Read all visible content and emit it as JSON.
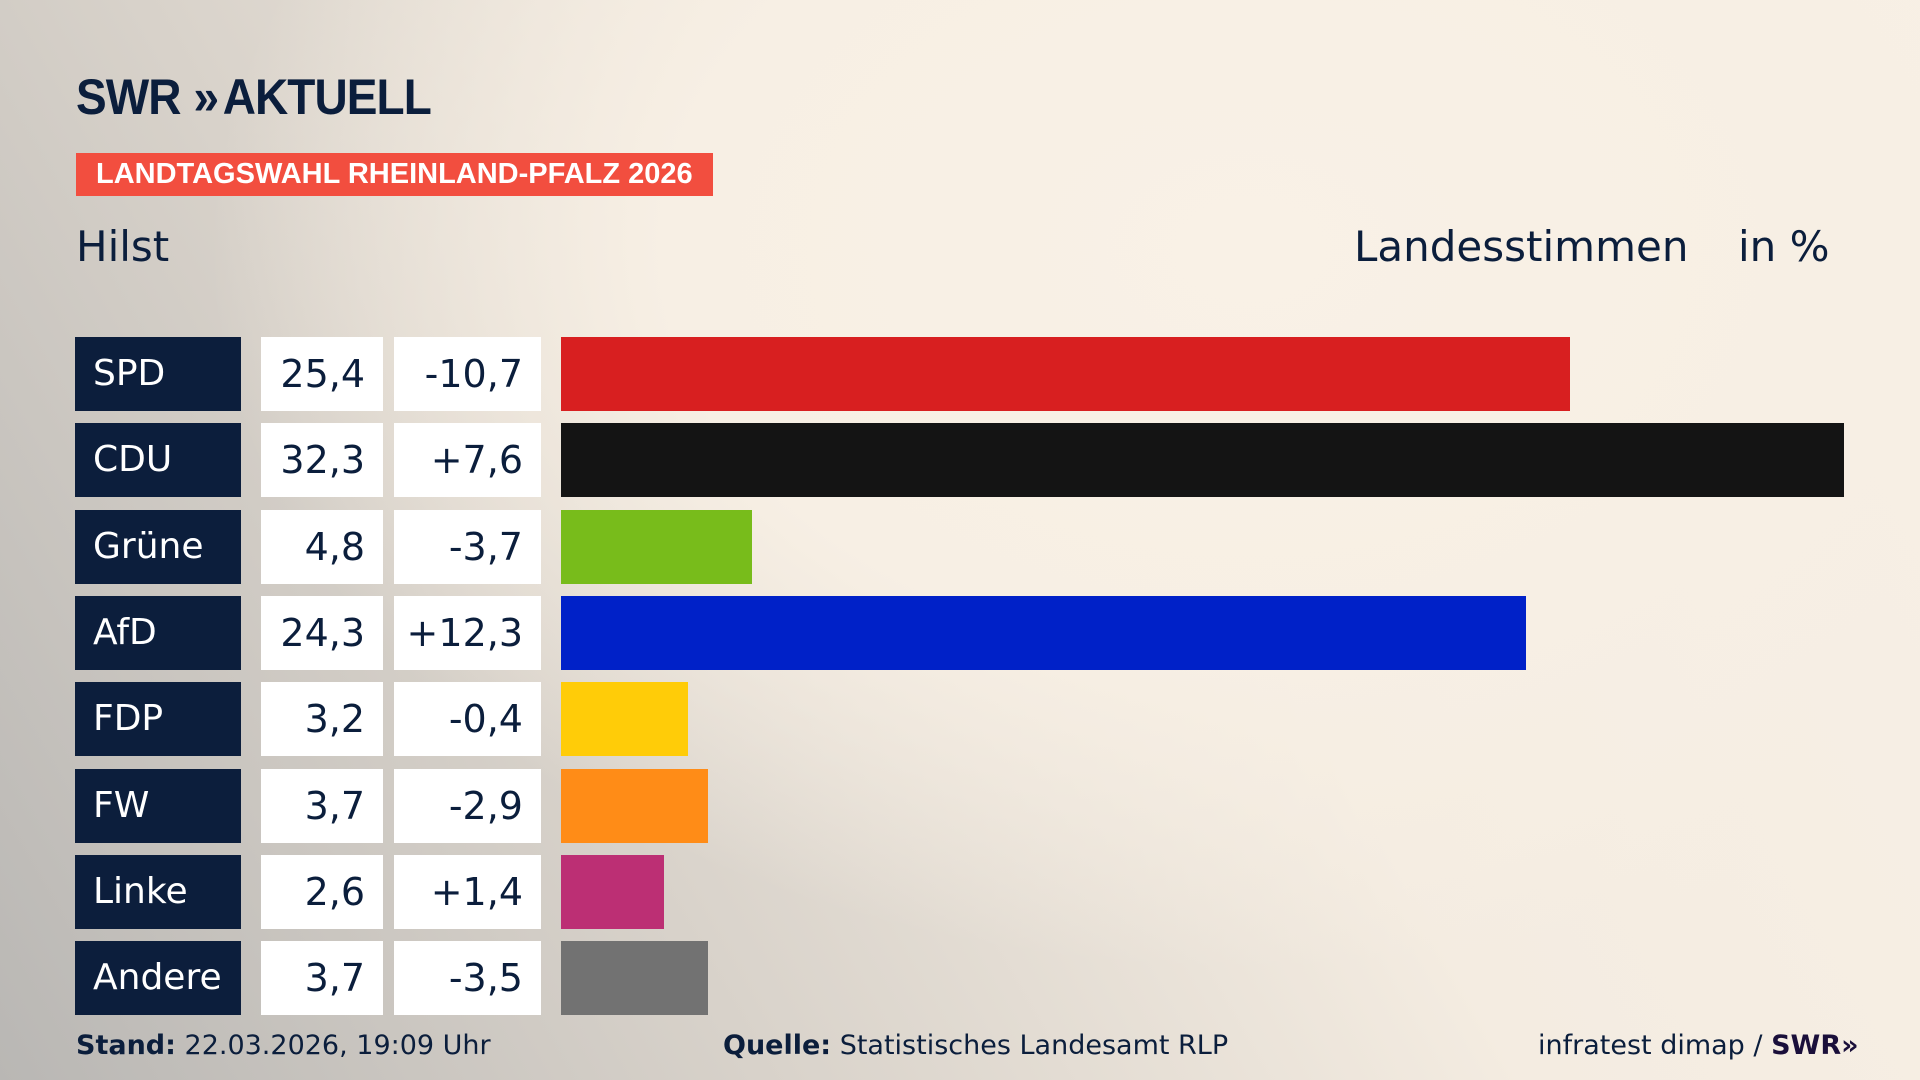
{
  "logo": {
    "text": "SWR",
    "chevrons": "»",
    "suffix": "AKTUELL"
  },
  "banner": "LANDTAGSWAHL RHEINLAND-PFALZ 2026",
  "subtitle": "Hilst",
  "measure": "Landesstimmen",
  "unit": "in %",
  "chart_data": {
    "type": "bar",
    "orientation": "horizontal",
    "categories": [
      "SPD",
      "CDU",
      "Grüne",
      "AfD",
      "FDP",
      "FW",
      "Linke",
      "Andere"
    ],
    "values": [
      25.4,
      32.3,
      4.8,
      24.3,
      3.2,
      3.7,
      2.6,
      3.7
    ],
    "value_labels": [
      "25,4",
      "32,3",
      "4,8",
      "24,3",
      "3,2",
      "3,7",
      "2,6",
      "3,7"
    ],
    "change_labels": [
      "-10,7",
      "+7,6",
      "-3,7",
      "+12,3",
      "-0,4",
      "-2,9",
      "+1,4",
      "-3,5"
    ],
    "colors": [
      "#d81f20",
      "#141414",
      "#78bc1b",
      "#0021c8",
      "#ffcc08",
      "#ff8c17",
      "#bc2f74",
      "#727272"
    ],
    "xlim": [
      0,
      32.3
    ],
    "grid": false
  },
  "footer": {
    "stand_label": "Stand:",
    "stand_value": "22.03.2026, 19:09 Uhr",
    "source_label": "Quelle:",
    "source_value": "Statistisches Landesamt RLP",
    "credit": "infratest dimap /",
    "credit_brand": "SWR»"
  }
}
